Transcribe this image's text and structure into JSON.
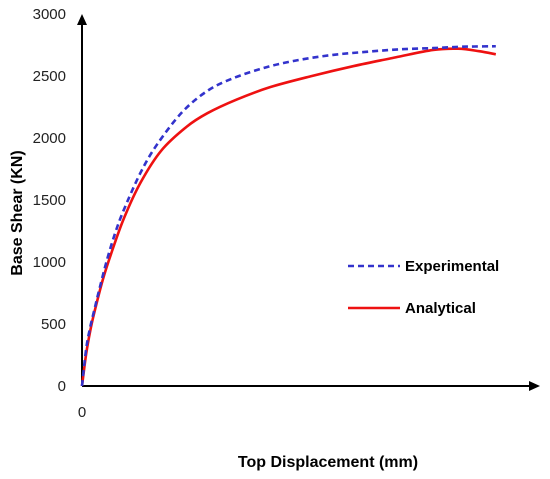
{
  "chart_data": {
    "type": "line",
    "xlabel": "Top Displacement (mm)",
    "ylabel": "Base Shear (KN)",
    "ylim": [
      0,
      3000
    ],
    "xlim": [
      0,
      100
    ],
    "x_ticks": [
      "0"
    ],
    "y_ticks": [
      0,
      500,
      1000,
      1500,
      2000,
      2500,
      3000
    ],
    "grid": false,
    "legend_position": "right-middle",
    "series": [
      {
        "name": "Experimental",
        "color": "#3333cc",
        "style": "dashed",
        "x": [
          0,
          1,
          2,
          3,
          4,
          6,
          8,
          10,
          14,
          18,
          24,
          30,
          36,
          44,
          52,
          60,
          68,
          76,
          84,
          90,
          94,
          99
        ],
        "y": [
          0,
          300,
          480,
          620,
          760,
          1020,
          1240,
          1420,
          1720,
          1950,
          2210,
          2380,
          2480,
          2570,
          2630,
          2670,
          2695,
          2715,
          2725,
          2735,
          2738,
          2740
        ]
      },
      {
        "name": "Analytical",
        "color": "#ee1111",
        "style": "solid",
        "x": [
          0,
          1,
          2,
          3,
          5,
          7,
          10,
          14,
          19,
          25,
          30,
          37,
          45,
          55,
          65,
          75,
          84,
          90,
          95,
          99
        ],
        "y": [
          0,
          260,
          450,
          600,
          860,
          1070,
          1350,
          1640,
          1900,
          2090,
          2200,
          2310,
          2410,
          2500,
          2580,
          2650,
          2710,
          2720,
          2700,
          2675
        ]
      }
    ]
  }
}
